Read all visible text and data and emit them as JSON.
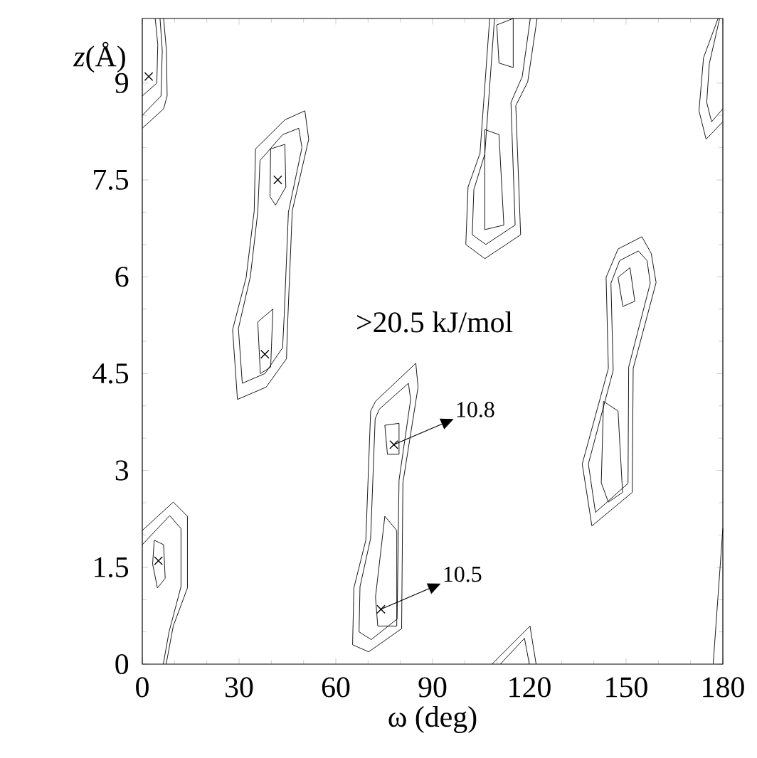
{
  "chart_data": {
    "type": "scatter",
    "xlabel": "ω (deg)",
    "ylabel": "*z*(Å)",
    "xlim": [
      0,
      180
    ],
    "ylim": [
      0,
      10
    ],
    "xticks": [
      0,
      30,
      60,
      90,
      120,
      150,
      180
    ],
    "yticks": [
      0,
      1.5,
      3,
      4.5,
      6,
      7.5,
      9
    ],
    "marker": "cross",
    "series": [
      {
        "color": "#000000",
        "x": [
          2,
          42,
          38,
          5,
          78,
          74
        ],
        "values": [
          9.1,
          7.5,
          4.8,
          1.6,
          3.4,
          0.85
        ]
      }
    ],
    "annotations": [
      {
        "text": "10.8",
        "x": 78,
        "y": 3.4
      },
      {
        "text": "10.5",
        "x": 74,
        "y": 0.85
      },
      ">20.5 kJ/mol"
    ]
  }
}
